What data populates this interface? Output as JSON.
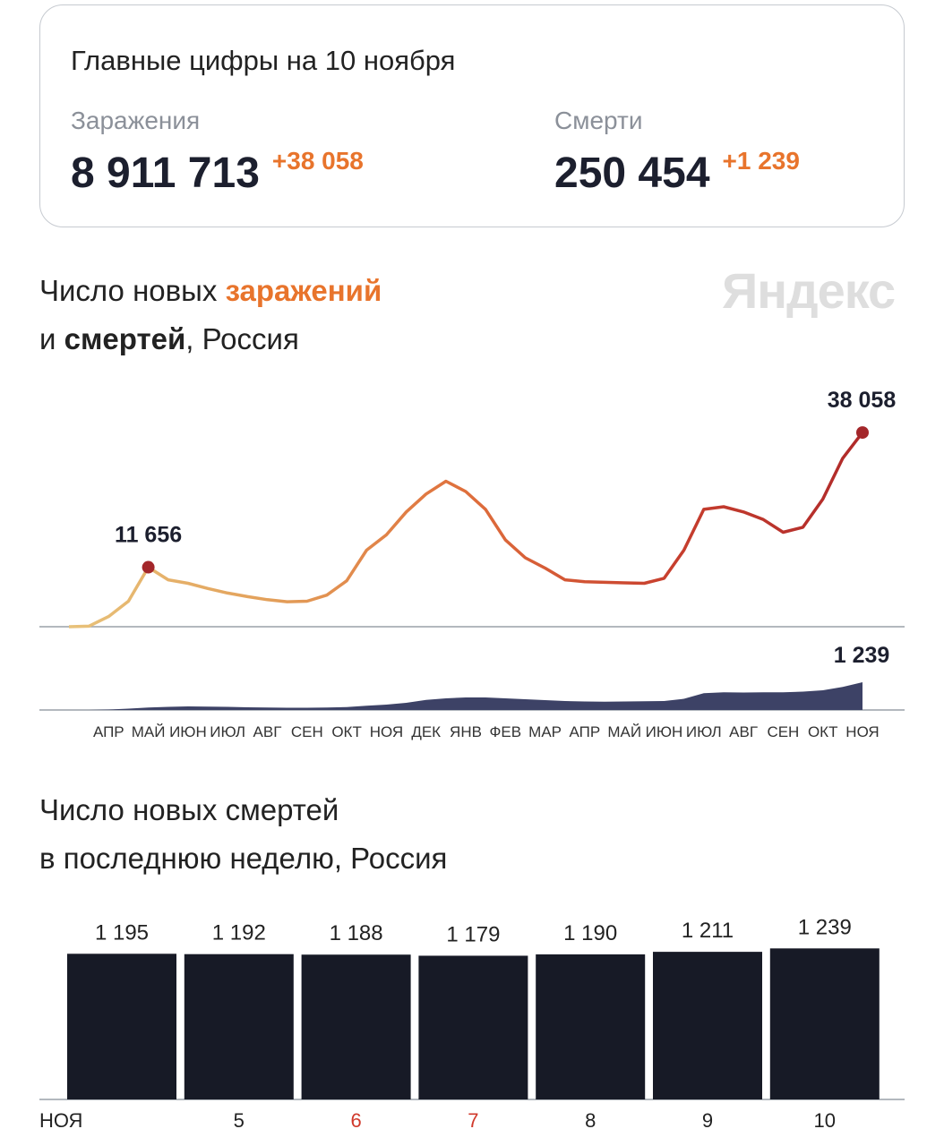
{
  "summary": {
    "title": "Главные цифры на 10 ноября",
    "cases_label": "Заражения",
    "cases_total": "8 911 713",
    "cases_delta": "+38 058",
    "deaths_label": "Смерти",
    "deaths_total": "250 454",
    "deaths_delta": "+1 239"
  },
  "logo": "Яндекс",
  "chart_data": [
    {
      "type": "line",
      "title": [
        [
          "Число новых ",
          "заражений"
        ],
        [
          "и ",
          "смертей",
          ", Россия"
        ]
      ],
      "title_styles": [
        [
          "normal",
          "accent"
        ],
        [
          "normal",
          "bold",
          "normal"
        ]
      ],
      "accent_color": "#e8742c",
      "categories": [
        null,
        null,
        "АПР",
        null,
        "МАЙ",
        null,
        "ИЮН",
        null,
        "ИЮЛ",
        null,
        "АВГ",
        null,
        "СЕН",
        null,
        "ОКТ",
        null,
        "НОЯ",
        null,
        "ДЕК",
        null,
        "ЯНВ",
        null,
        "ФЕВ",
        null,
        "МАР",
        null,
        "АПР",
        null,
        "МАЙ",
        null,
        "ИЮН",
        null,
        "ИЮЛ",
        null,
        "АВГ",
        null,
        "СЕН",
        null,
        "ОКТ",
        null,
        "НОЯ"
      ],
      "ylim": [
        0,
        40000
      ],
      "y2lim": [
        0,
        1500
      ],
      "series": [
        {
          "type": "line",
          "colors": [
            "#e8c27a",
            "#e3a05a",
            "#df6f3c",
            "#c8402e",
            "#b02a2a"
          ],
          "marker_color": "#a3262a",
          "values": [
            0,
            100,
            2000,
            5000,
            11656,
            9200,
            8500,
            7500,
            6600,
            5900,
            5300,
            4900,
            5000,
            6200,
            9000,
            15000,
            18000,
            22500,
            26000,
            28500,
            26500,
            23000,
            17000,
            13500,
            11500,
            9200,
            8800,
            8700,
            8600,
            8500,
            9500,
            15000,
            23000,
            23500,
            22500,
            21000,
            18500,
            19500,
            25000,
            33000,
            38058
          ],
          "value_labels": [
            null,
            null,
            null,
            null,
            "11 656",
            null,
            null,
            null,
            null,
            null,
            null,
            null,
            null,
            null,
            null,
            null,
            null,
            null,
            null,
            null,
            null,
            null,
            null,
            null,
            null,
            null,
            null,
            null,
            null,
            null,
            null,
            null,
            null,
            null,
            null,
            null,
            null,
            null,
            null,
            null,
            "38 058"
          ]
        },
        {
          "type": "area",
          "axis": "y2",
          "color": "#3d4266",
          "values": [
            0,
            0,
            20,
            60,
            110,
            140,
            160,
            150,
            140,
            120,
            110,
            100,
            100,
            110,
            130,
            190,
            240,
            320,
            450,
            520,
            560,
            560,
            520,
            480,
            440,
            400,
            380,
            370,
            380,
            390,
            400,
            500,
            750,
            790,
            780,
            790,
            790,
            820,
            880,
            1030,
            1239
          ],
          "value_labels": [
            null,
            null,
            null,
            null,
            null,
            null,
            null,
            null,
            null,
            null,
            null,
            null,
            null,
            null,
            null,
            null,
            null,
            null,
            null,
            null,
            null,
            null,
            null,
            null,
            null,
            null,
            null,
            null,
            null,
            null,
            null,
            null,
            null,
            null,
            null,
            null,
            null,
            null,
            null,
            null,
            "1 239"
          ]
        }
      ]
    },
    {
      "type": "bar",
      "title": [
        [
          "Число новых смертей"
        ],
        [
          "в последнюю неделю, Россия"
        ]
      ],
      "title_styles": [
        [
          "normal"
        ],
        [
          "normal"
        ]
      ],
      "categories": [
        "НОЯ",
        "5",
        "6",
        "7",
        "8",
        "9",
        "10"
      ],
      "tick_label_colors": [
        "#222222",
        "#222222",
        "#d0392b",
        "#d0392b",
        "#222222",
        "#222222",
        "#222222"
      ],
      "values": [
        1195,
        1192,
        1188,
        1179,
        1190,
        1211,
        1239
      ],
      "value_labels": [
        "1 195",
        "1 192",
        "1 188",
        "1 179",
        "1 190",
        "1 211",
        "1 239"
      ],
      "color": "#171a26",
      "ylim": [
        0,
        1300
      ]
    }
  ]
}
